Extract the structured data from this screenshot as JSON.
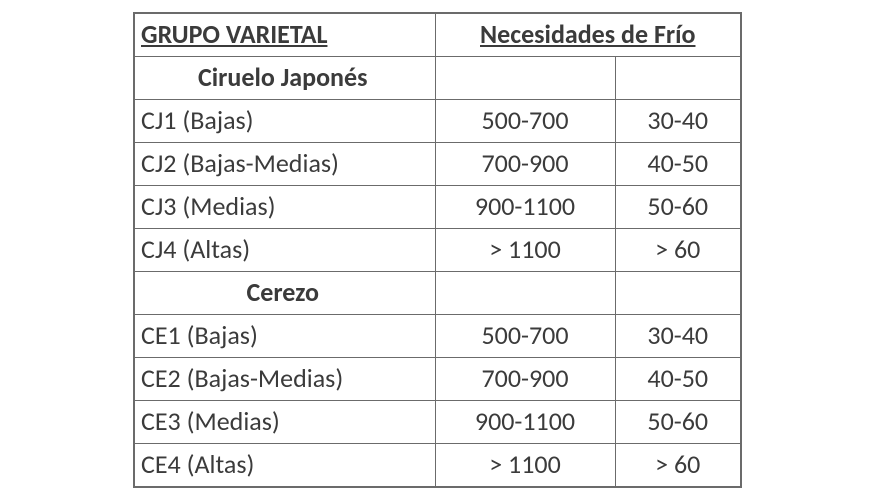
{
  "table": {
    "headers": {
      "group": "GRUPO VARIETAL",
      "needs": "Necesidades de Frío"
    },
    "sections": [
      {
        "label": "Ciruelo Japonés",
        "rows": [
          {
            "label": "CJ1  (Bajas)",
            "v1": "500-700",
            "v2": "30-40"
          },
          {
            "label": "CJ2  (Bajas-Medias)",
            "v1": "700-900",
            "v2": "40-50"
          },
          {
            "label": "CJ3  (Medias)",
            "v1": "900-1100",
            "v2": "50-60"
          },
          {
            "label": "CJ4  (Altas)",
            "v1": "> 1100",
            "v2": "> 60"
          }
        ]
      },
      {
        "label": "Cerezo",
        "rows": [
          {
            "label": "CE1  (Bajas)",
            "v1": "500-700",
            "v2": "30-40"
          },
          {
            "label": "CE2  (Bajas-Medias)",
            "v1": "700-900",
            "v2": "40-50"
          },
          {
            "label": "CE3  (Medias)",
            "v1": "900-1100",
            "v2": "50-60"
          },
          {
            "label": "CE4  (Altas)",
            "v1": "> 1100",
            "v2": "> 60"
          }
        ]
      }
    ],
    "style": {
      "border_color": "#6b6b6b",
      "text_color": "#3b3b3b",
      "background_color": "#ffffff",
      "header_fontsize": 26,
      "body_fontsize": 26,
      "col_widths": {
        "group": 300,
        "v1": 180,
        "v2": 125
      }
    }
  }
}
